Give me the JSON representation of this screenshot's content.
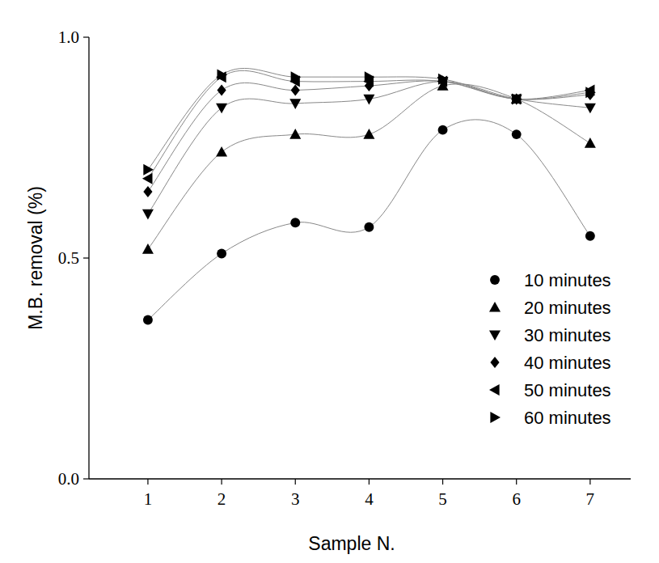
{
  "chart_data": {
    "type": "scatter",
    "x_label": "Sample N.",
    "y_label": "M.B. removal (%)",
    "x": [
      1,
      2,
      3,
      4,
      5,
      6,
      7
    ],
    "xlim": [
      0.2,
      7.55
    ],
    "xticks": [
      1,
      2,
      3,
      4,
      5,
      6,
      7
    ],
    "ylim": [
      0,
      1
    ],
    "yticks": [
      {
        "value": 0,
        "label": "0.0"
      },
      {
        "value": 0.5,
        "label": "0.5"
      },
      {
        "value": 1,
        "label": "1.0"
      }
    ],
    "legend": "lower right",
    "line_style": "smooth",
    "grid": false,
    "series": [
      {
        "name": "10 minutes",
        "color": "#000000",
        "marker": "circle",
        "values": [
          0.36,
          0.51,
          0.58,
          0.57,
          0.79,
          0.78,
          0.55
        ]
      },
      {
        "name": "20 minutes",
        "color": "#000000",
        "marker": "triangle-up",
        "values": [
          0.52,
          0.74,
          0.78,
          0.78,
          0.89,
          0.86,
          0.76
        ]
      },
      {
        "name": "30 minutes",
        "color": "#000000",
        "marker": "triangle-down",
        "values": [
          0.6,
          0.84,
          0.85,
          0.86,
          0.9,
          0.86,
          0.84
        ]
      },
      {
        "name": "40 minutes",
        "color": "#000000",
        "marker": "diamond",
        "values": [
          0.65,
          0.88,
          0.88,
          0.89,
          0.9,
          0.86,
          0.87
        ]
      },
      {
        "name": "50 minutes",
        "color": "#000000",
        "marker": "triangle-left",
        "values": [
          0.68,
          0.91,
          0.9,
          0.9,
          0.9,
          0.86,
          0.88
        ]
      },
      {
        "name": "60 minutes",
        "color": "#000000",
        "marker": "triangle-right",
        "values": [
          0.7,
          0.915,
          0.91,
          0.91,
          0.905,
          0.86,
          0.875
        ]
      }
    ]
  }
}
